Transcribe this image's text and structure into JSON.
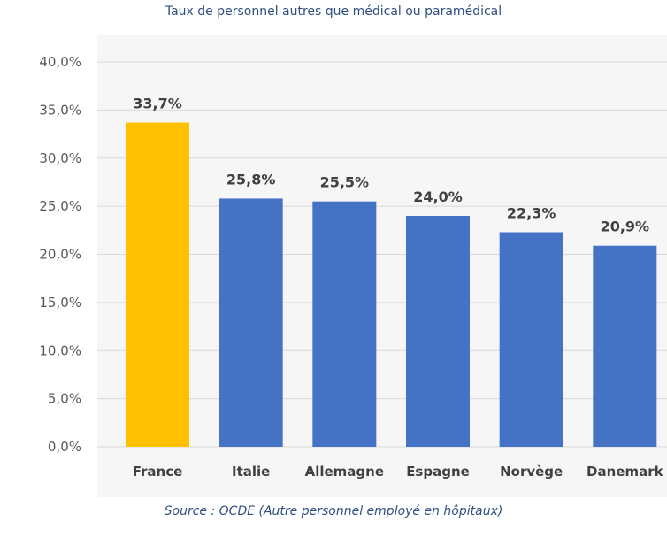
{
  "chart_data": {
    "type": "bar",
    "title": "Taux de personnel autres que médical ou paramédical",
    "subtitle": "Source : OCDE (Autre personnel employé en hôpitaux)",
    "categories": [
      "France",
      "Italie",
      "Allemagne",
      "Espagne",
      "Norvège",
      "Danemark"
    ],
    "values": [
      33.7,
      25.8,
      25.5,
      24.0,
      22.3,
      20.9
    ],
    "data_labels": [
      "33,7%",
      "25,8%",
      "25,5%",
      "24,0%",
      "22,3%",
      "20,9%"
    ],
    "ylim": [
      0,
      40
    ],
    "yticks": [
      0,
      5,
      10,
      15,
      20,
      25,
      30,
      35,
      40
    ],
    "ytick_labels": [
      "0,0%",
      "5,0%",
      "10,0%",
      "15,0%",
      "20,0%",
      "25,0%",
      "30,0%",
      "35,0%",
      "40,0%"
    ],
    "xlabel": "",
    "ylabel": "",
    "grid": true,
    "colors": {
      "highlight": "#FFC000",
      "bar": "#4472C4"
    }
  }
}
